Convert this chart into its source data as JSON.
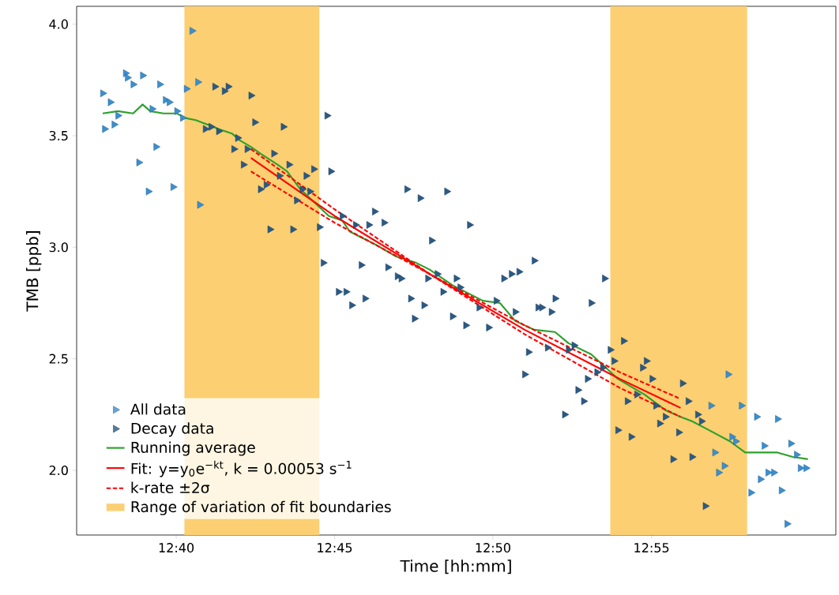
{
  "chart_data": {
    "type": "scatter",
    "xlabel": "Time [hh:mm]",
    "ylabel": "TMB [ppb]",
    "xlim": [
      12.6143,
      13.0137
    ],
    "ylim": [
      1.71,
      4.08
    ],
    "xticks": [
      {
        "value": 12.6667,
        "label": "12:40"
      },
      {
        "value": 12.75,
        "label": "12:45"
      },
      {
        "value": 12.8333,
        "label": "12:50"
      },
      {
        "value": 12.9167,
        "label": "12:55"
      }
    ],
    "yticks": [
      {
        "value": 2.0,
        "label": "2.0"
      },
      {
        "value": 2.5,
        "label": "2.5"
      },
      {
        "value": 3.0,
        "label": "3.0"
      },
      {
        "value": 3.5,
        "label": "3.5"
      },
      {
        "value": 4.0,
        "label": "4.0"
      }
    ],
    "legend": "bottom left",
    "bands": [
      {
        "axis": "x",
        "from": 12.671,
        "to": 12.742,
        "label": "Range of variation of fit boundaries",
        "color": "#fbcf72"
      },
      {
        "axis": "x",
        "from": 12.895,
        "to": 12.967,
        "color": "#fbcf72"
      }
    ],
    "series": [
      {
        "name": "All data",
        "marker": "triangle",
        "color": "#3a8fd0",
        "x": [
          12.675,
          12.64,
          12.641,
          12.644,
          12.649,
          12.658,
          12.628,
          12.632,
          12.661,
          12.663,
          12.672,
          12.678,
          12.654,
          12.636,
          12.629,
          12.634,
          12.656,
          12.647,
          12.652,
          12.665,
          12.679,
          12.667,
          12.67,
          12.957,
          12.948,
          12.964,
          12.972,
          12.983,
          12.959,
          12.961,
          12.95,
          12.976,
          12.99,
          12.993,
          12.955,
          12.952,
          12.995,
          12.998,
          12.978,
          12.981,
          12.974,
          12.969,
          12.985,
          12.988
        ],
        "values": [
          3.97,
          3.78,
          3.76,
          3.73,
          3.77,
          3.73,
          3.69,
          3.65,
          3.66,
          3.65,
          3.71,
          3.74,
          3.62,
          3.59,
          3.53,
          3.55,
          3.45,
          3.38,
          3.25,
          3.27,
          3.19,
          3.61,
          3.58,
          2.43,
          2.29,
          2.29,
          2.24,
          2.23,
          2.15,
          2.13,
          2.08,
          2.11,
          2.12,
          2.07,
          2.02,
          1.99,
          2.01,
          2.01,
          1.99,
          1.99,
          1.96,
          1.9,
          1.91,
          1.76
        ]
      },
      {
        "name": "Decay data",
        "marker": "triangle",
        "color": "#2a5a85",
        "x": [
          12.687,
          12.694,
          12.692,
          12.706,
          12.708,
          12.723,
          12.746,
          12.682,
          12.685,
          12.689,
          12.699,
          12.697,
          12.704,
          12.702,
          12.718,
          12.726,
          12.721,
          12.735,
          12.739,
          12.748,
          12.711,
          12.714,
          12.733,
          12.737,
          12.73,
          12.716,
          12.728,
          12.742,
          12.744,
          12.788,
          12.795,
          12.809,
          12.821,
          12.771,
          12.776,
          12.768,
          12.761,
          12.754,
          12.801,
          12.764,
          12.778,
          12.783,
          12.785,
          12.799,
          12.804,
          12.814,
          12.816,
          12.807,
          12.752,
          12.756,
          12.759,
          12.766,
          12.79,
          12.797,
          12.792,
          12.812,
          12.819,
          12.831,
          12.826,
          12.835,
          12.839,
          12.843,
          12.847,
          12.855,
          12.857,
          12.859,
          12.864,
          12.866,
          12.845,
          12.885,
          12.892,
          12.852,
          12.862,
          12.85,
          12.876,
          12.873,
          12.883,
          12.878,
          12.881,
          12.871,
          12.891,
          12.888,
          12.902,
          12.895,
          12.897,
          12.914,
          12.912,
          12.917,
          12.933,
          12.904,
          12.909,
          12.919,
          12.924,
          12.921,
          12.936,
          12.941,
          12.943,
          12.931,
          12.899,
          12.906,
          12.928,
          12.938,
          12.945
        ],
        "values": [
          3.72,
          3.72,
          3.7,
          3.68,
          3.56,
          3.54,
          3.59,
          3.53,
          3.54,
          3.52,
          3.49,
          3.44,
          3.44,
          3.37,
          3.42,
          3.37,
          3.32,
          3.32,
          3.35,
          3.34,
          3.26,
          3.28,
          3.26,
          3.25,
          3.21,
          3.08,
          3.08,
          3.09,
          2.93,
          3.26,
          3.22,
          3.25,
          3.1,
          3.16,
          3.11,
          3.1,
          3.1,
          3.14,
          3.03,
          2.92,
          2.91,
          2.87,
          2.86,
          2.86,
          2.88,
          2.86,
          2.82,
          2.8,
          2.8,
          2.8,
          2.74,
          2.77,
          2.77,
          2.74,
          2.68,
          2.69,
          2.65,
          2.64,
          2.73,
          2.76,
          2.86,
          2.88,
          2.89,
          2.94,
          2.73,
          2.73,
          2.71,
          2.77,
          2.71,
          2.75,
          2.86,
          2.53,
          2.55,
          2.43,
          2.56,
          2.54,
          2.41,
          2.36,
          2.31,
          2.25,
          2.46,
          2.44,
          2.58,
          2.54,
          2.49,
          2.49,
          2.46,
          2.41,
          2.39,
          2.31,
          2.34,
          2.29,
          2.24,
          2.21,
          2.31,
          2.25,
          2.22,
          2.17,
          2.18,
          2.15,
          2.05,
          2.06,
          1.84
        ]
      },
      {
        "name": "Running average",
        "type": "line",
        "marker": "none",
        "color": "#2ca02c",
        "x": [
          12.628,
          12.636,
          12.644,
          12.649,
          12.653,
          12.66,
          12.667,
          12.671,
          12.677,
          12.683,
          12.689,
          12.696,
          12.7,
          12.706,
          12.711,
          12.72,
          12.725,
          12.732,
          12.742,
          12.747,
          12.754,
          12.758,
          12.772,
          12.782,
          12.793,
          12.8,
          12.812,
          12.828,
          12.837,
          12.845,
          12.855,
          12.866,
          12.873,
          12.885,
          12.894,
          12.899,
          12.913,
          12.924,
          12.932,
          12.938,
          12.947,
          12.958,
          12.966,
          12.974,
          12.983,
          12.991,
          12.999
        ],
        "values": [
          3.6,
          3.61,
          3.6,
          3.64,
          3.61,
          3.6,
          3.6,
          3.58,
          3.57,
          3.55,
          3.53,
          3.51,
          3.48,
          3.45,
          3.42,
          3.37,
          3.34,
          3.26,
          3.18,
          3.14,
          3.12,
          3.07,
          3.01,
          2.96,
          2.93,
          2.9,
          2.83,
          2.76,
          2.75,
          2.67,
          2.63,
          2.62,
          2.57,
          2.52,
          2.45,
          2.41,
          2.34,
          2.27,
          2.24,
          2.22,
          2.18,
          2.13,
          2.08,
          2.08,
          2.08,
          2.06,
          2.05
        ]
      },
      {
        "name": "Fit: y=y$_{0}$e$^{−kt}$, k = 0.00053 s$^{−1}$",
        "type": "line",
        "marker": "none",
        "color": "#ff0000",
        "x": [
          12.706,
          12.75,
          12.8,
          12.85,
          12.9,
          12.932
        ],
        "values": [
          3.4,
          3.14,
          2.88,
          2.63,
          2.41,
          2.28
        ]
      },
      {
        "name": "k-rate ±2σ",
        "type": "line",
        "marker": "none",
        "line_style": "dashed",
        "color": "#ff0000",
        "x": [
          12.706,
          12.75,
          12.8,
          12.85,
          12.9,
          12.932
        ],
        "values": [
          3.44,
          3.17,
          2.88,
          2.61,
          2.37,
          2.24
        ]
      },
      {
        "type": "line",
        "marker": "none",
        "line_style": "dashed",
        "color": "#ff0000",
        "x": [
          12.706,
          12.75,
          12.8,
          12.85,
          12.9,
          12.932
        ],
        "values": [
          3.34,
          3.11,
          2.88,
          2.65,
          2.44,
          2.32
        ]
      }
    ]
  }
}
